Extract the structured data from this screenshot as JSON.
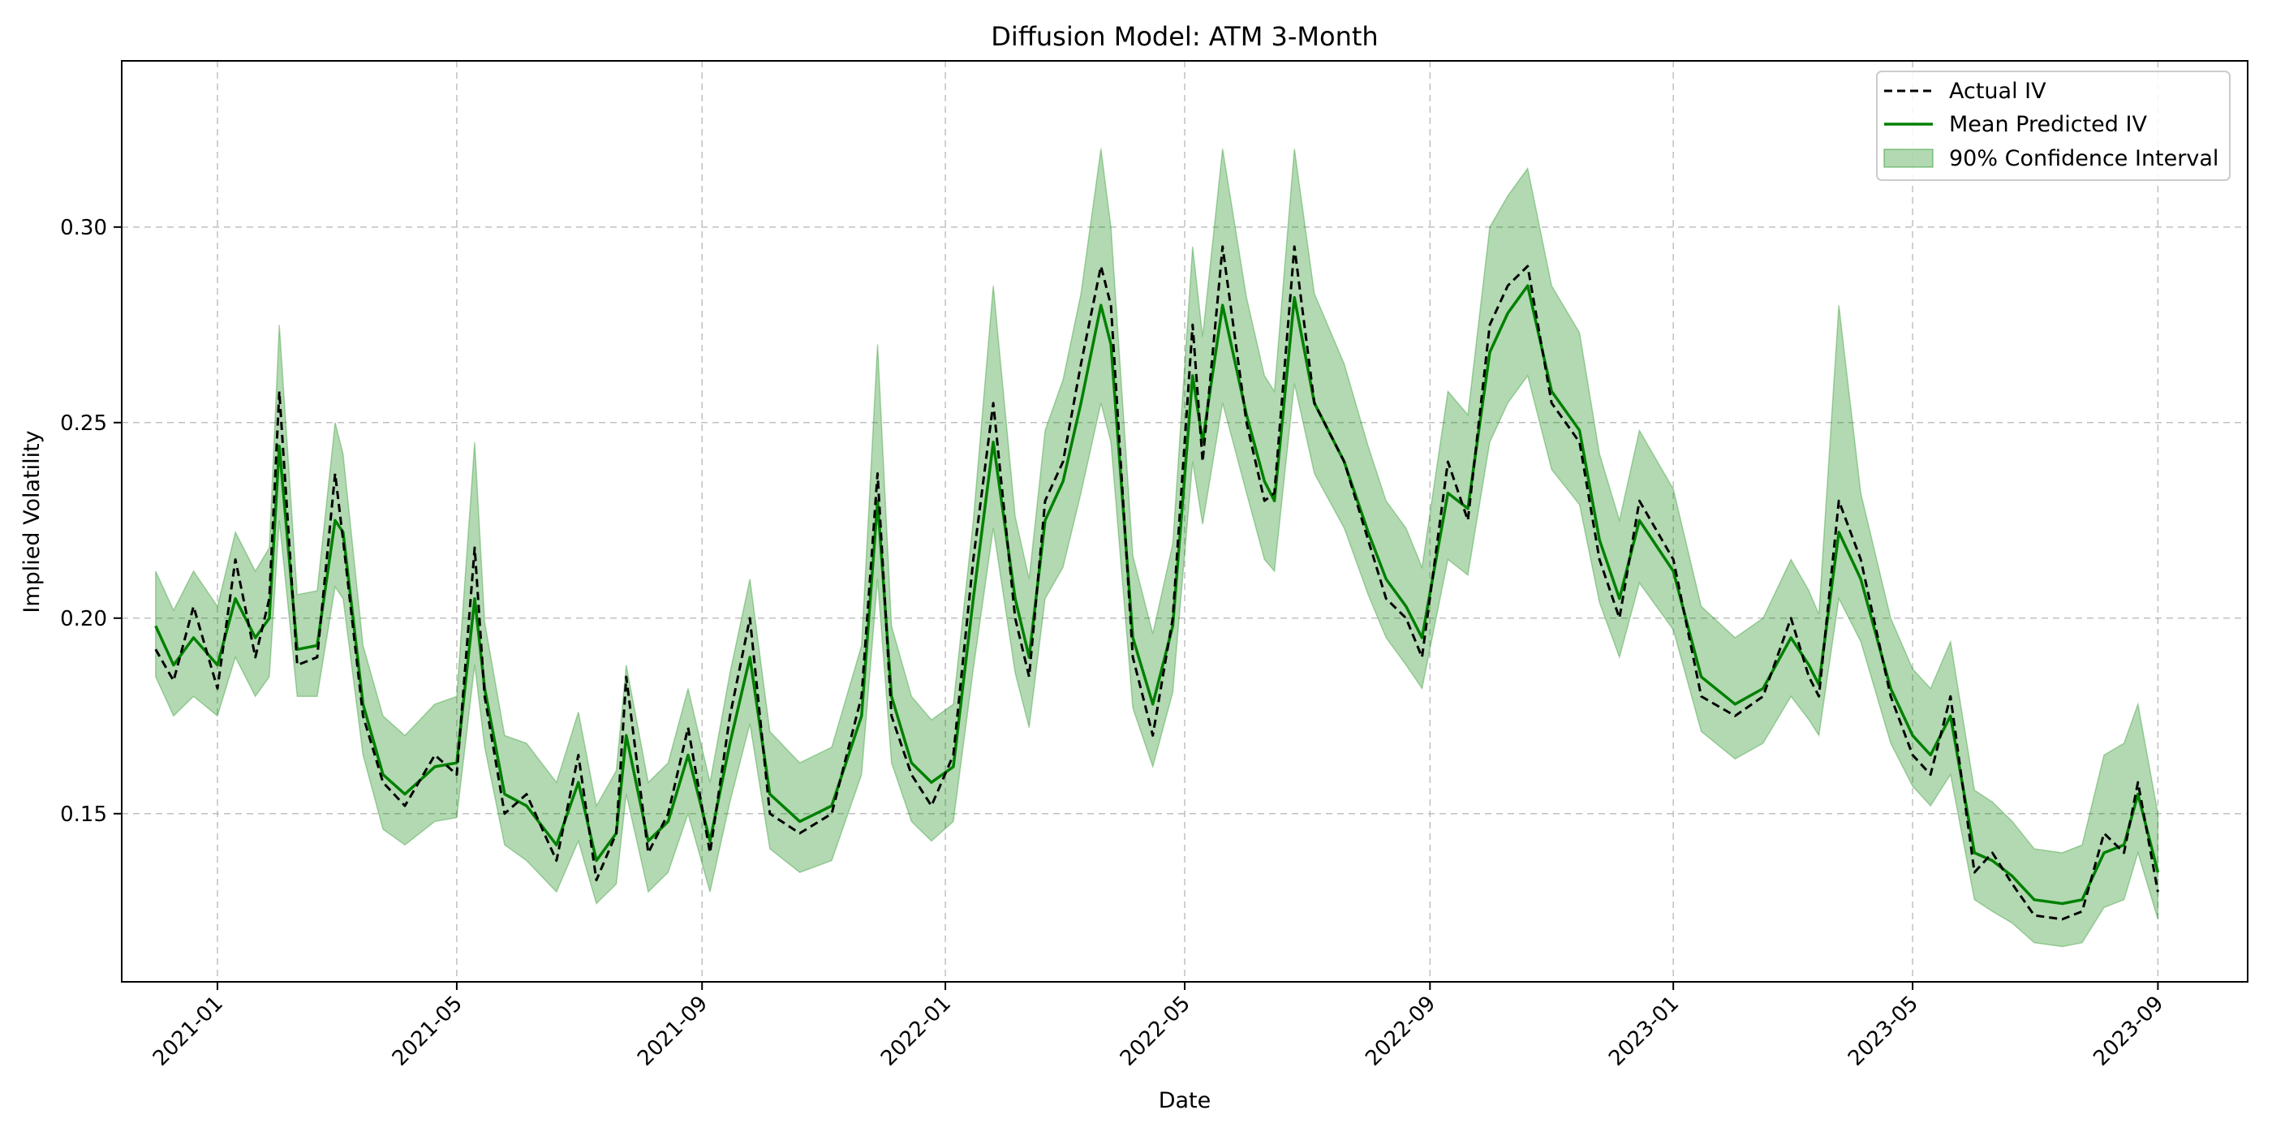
{
  "chart_data": {
    "type": "line",
    "title": "Diffusion Model: ATM 3-Month",
    "xlabel": "Date",
    "ylabel": "Implied Volatility",
    "xlim": [
      "2020-11-14",
      "2023-10-16"
    ],
    "ylim": [
      0.107,
      0.3425
    ],
    "grid": true,
    "legend_position": "top-right",
    "x_ticks": [
      "2021-01",
      "2021-05",
      "2021-09",
      "2022-01",
      "2022-05",
      "2022-09",
      "2023-01",
      "2023-05",
      "2023-09"
    ],
    "y_ticks": [
      0.15,
      0.2,
      0.25,
      0.3
    ],
    "y_tick_labels": [
      "0.15",
      "0.20",
      "0.25",
      "0.30"
    ],
    "x": [
      "2020-12-01",
      "2020-12-10",
      "2020-12-20",
      "2021-01-01",
      "2021-01-10",
      "2021-01-20",
      "2021-01-27",
      "2021-02-01",
      "2021-02-10",
      "2021-02-20",
      "2021-03-01",
      "2021-03-05",
      "2021-03-15",
      "2021-03-25",
      "2021-04-05",
      "2021-04-20",
      "2021-05-01",
      "2021-05-10",
      "2021-05-15",
      "2021-05-25",
      "2021-06-05",
      "2021-06-20",
      "2021-07-01",
      "2021-07-10",
      "2021-07-20",
      "2021-07-25",
      "2021-08-05",
      "2021-08-15",
      "2021-08-25",
      "2021-09-05",
      "2021-09-15",
      "2021-09-25",
      "2021-10-05",
      "2021-10-20",
      "2021-11-05",
      "2021-11-20",
      "2021-11-28",
      "2021-12-05",
      "2021-12-15",
      "2021-12-25",
      "2022-01-05",
      "2022-01-15",
      "2022-01-25",
      "2022-02-05",
      "2022-02-12",
      "2022-02-20",
      "2022-03-01",
      "2022-03-10",
      "2022-03-20",
      "2022-03-25",
      "2022-04-05",
      "2022-04-15",
      "2022-04-25",
      "2022-05-05",
      "2022-05-10",
      "2022-05-20",
      "2022-06-01",
      "2022-06-10",
      "2022-06-15",
      "2022-06-25",
      "2022-07-05",
      "2022-07-20",
      "2022-08-01",
      "2022-08-10",
      "2022-08-20",
      "2022-08-28",
      "2022-09-10",
      "2022-09-20",
      "2022-10-01",
      "2022-10-10",
      "2022-10-20",
      "2022-11-01",
      "2022-11-15",
      "2022-11-25",
      "2022-12-05",
      "2022-12-15",
      "2023-01-01",
      "2023-01-15",
      "2023-02-01",
      "2023-02-15",
      "2023-03-01",
      "2023-03-10",
      "2023-03-15",
      "2023-03-25",
      "2023-04-05",
      "2023-04-20",
      "2023-05-01",
      "2023-05-10",
      "2023-05-20",
      "2023-06-01",
      "2023-06-10",
      "2023-06-20",
      "2023-07-01",
      "2023-07-15",
      "2023-07-25",
      "2023-08-05",
      "2023-08-15",
      "2023-08-22",
      "2023-09-01"
    ],
    "series": [
      {
        "name": "Actual IV",
        "style": "dashed",
        "color": "#000000",
        "values": [
          0.192,
          0.184,
          0.203,
          0.182,
          0.215,
          0.19,
          0.205,
          0.258,
          0.188,
          0.19,
          0.237,
          0.22,
          0.175,
          0.158,
          0.152,
          0.165,
          0.16,
          0.218,
          0.18,
          0.15,
          0.155,
          0.138,
          0.165,
          0.133,
          0.145,
          0.185,
          0.14,
          0.15,
          0.172,
          0.14,
          0.175,
          0.2,
          0.15,
          0.145,
          0.15,
          0.18,
          0.237,
          0.175,
          0.16,
          0.152,
          0.165,
          0.215,
          0.255,
          0.2,
          0.185,
          0.23,
          0.24,
          0.265,
          0.29,
          0.28,
          0.19,
          0.17,
          0.2,
          0.275,
          0.24,
          0.295,
          0.25,
          0.23,
          0.232,
          0.295,
          0.255,
          0.24,
          0.22,
          0.205,
          0.2,
          0.19,
          0.24,
          0.225,
          0.275,
          0.285,
          0.29,
          0.255,
          0.245,
          0.215,
          0.2,
          0.23,
          0.215,
          0.18,
          0.175,
          0.18,
          0.2,
          0.185,
          0.18,
          0.23,
          0.215,
          0.18,
          0.165,
          0.16,
          0.18,
          0.135,
          0.14,
          0.132,
          0.124,
          0.123,
          0.125,
          0.145,
          0.14,
          0.158,
          0.13
        ]
      },
      {
        "name": "Mean Predicted IV",
        "style": "solid",
        "color": "#008000",
        "values": [
          0.198,
          0.188,
          0.195,
          0.188,
          0.205,
          0.195,
          0.2,
          0.244,
          0.192,
          0.193,
          0.225,
          0.222,
          0.178,
          0.16,
          0.155,
          0.162,
          0.163,
          0.205,
          0.182,
          0.155,
          0.152,
          0.142,
          0.158,
          0.138,
          0.145,
          0.17,
          0.143,
          0.148,
          0.165,
          0.143,
          0.168,
          0.19,
          0.155,
          0.148,
          0.152,
          0.175,
          0.23,
          0.18,
          0.163,
          0.158,
          0.162,
          0.205,
          0.245,
          0.205,
          0.19,
          0.225,
          0.235,
          0.255,
          0.28,
          0.27,
          0.195,
          0.178,
          0.198,
          0.262,
          0.245,
          0.28,
          0.252,
          0.235,
          0.23,
          0.282,
          0.255,
          0.24,
          0.222,
          0.21,
          0.203,
          0.195,
          0.232,
          0.228,
          0.268,
          0.278,
          0.285,
          0.258,
          0.248,
          0.22,
          0.205,
          0.225,
          0.212,
          0.185,
          0.178,
          0.182,
          0.195,
          0.188,
          0.183,
          0.222,
          0.21,
          0.182,
          0.17,
          0.165,
          0.175,
          0.14,
          0.138,
          0.134,
          0.128,
          0.127,
          0.128,
          0.14,
          0.142,
          0.155,
          0.135
        ]
      },
      {
        "name": "90% Confidence Interval",
        "style": "band",
        "color": "#008000",
        "lower": [
          0.185,
          0.175,
          0.18,
          0.175,
          0.19,
          0.18,
          0.185,
          0.225,
          0.18,
          0.18,
          0.208,
          0.205,
          0.165,
          0.146,
          0.142,
          0.148,
          0.149,
          0.188,
          0.167,
          0.142,
          0.138,
          0.13,
          0.143,
          0.127,
          0.132,
          0.155,
          0.13,
          0.135,
          0.15,
          0.13,
          0.153,
          0.173,
          0.141,
          0.135,
          0.138,
          0.16,
          0.21,
          0.163,
          0.148,
          0.143,
          0.148,
          0.187,
          0.223,
          0.186,
          0.172,
          0.205,
          0.213,
          0.232,
          0.255,
          0.245,
          0.177,
          0.162,
          0.181,
          0.24,
          0.224,
          0.255,
          0.232,
          0.215,
          0.212,
          0.26,
          0.237,
          0.223,
          0.206,
          0.195,
          0.188,
          0.182,
          0.215,
          0.211,
          0.245,
          0.255,
          0.262,
          0.238,
          0.229,
          0.204,
          0.19,
          0.209,
          0.197,
          0.171,
          0.164,
          0.168,
          0.18,
          0.174,
          0.17,
          0.205,
          0.194,
          0.168,
          0.157,
          0.152,
          0.16,
          0.128,
          0.125,
          0.122,
          0.117,
          0.116,
          0.117,
          0.126,
          0.128,
          0.14,
          0.123
        ],
        "upper": [
          0.212,
          0.202,
          0.212,
          0.203,
          0.222,
          0.212,
          0.218,
          0.275,
          0.206,
          0.207,
          0.25,
          0.242,
          0.193,
          0.175,
          0.17,
          0.178,
          0.18,
          0.245,
          0.199,
          0.17,
          0.168,
          0.158,
          0.176,
          0.152,
          0.161,
          0.188,
          0.158,
          0.163,
          0.182,
          0.158,
          0.186,
          0.21,
          0.171,
          0.163,
          0.167,
          0.193,
          0.27,
          0.198,
          0.18,
          0.174,
          0.178,
          0.225,
          0.285,
          0.226,
          0.21,
          0.248,
          0.261,
          0.283,
          0.32,
          0.3,
          0.216,
          0.196,
          0.219,
          0.295,
          0.272,
          0.32,
          0.282,
          0.262,
          0.258,
          0.32,
          0.283,
          0.265,
          0.244,
          0.23,
          0.223,
          0.213,
          0.258,
          0.252,
          0.3,
          0.308,
          0.315,
          0.285,
          0.273,
          0.242,
          0.225,
          0.248,
          0.233,
          0.203,
          0.195,
          0.2,
          0.215,
          0.207,
          0.201,
          0.28,
          0.232,
          0.2,
          0.187,
          0.182,
          0.194,
          0.156,
          0.153,
          0.148,
          0.141,
          0.14,
          0.142,
          0.165,
          0.168,
          0.178,
          0.15
        ]
      }
    ]
  }
}
